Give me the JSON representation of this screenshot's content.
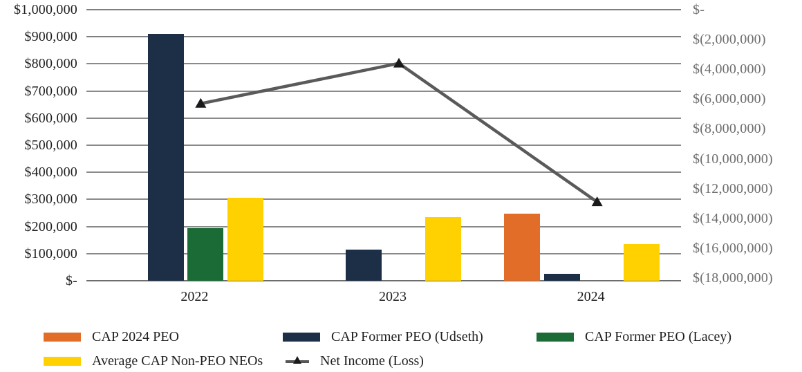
{
  "chart_data": {
    "type": "combo_bar_line",
    "title": "",
    "xlabel": "",
    "ylabel": "",
    "categories": [
      "2022",
      "2023",
      "2024"
    ],
    "bar_series": [
      {
        "name": "CAP 2024 PEO",
        "color": "#E26D28",
        "values": [
          null,
          null,
          248000
        ]
      },
      {
        "name": "CAP Former PEO (Udseth)",
        "color": "#1D2F47",
        "values": [
          910000,
          115000,
          25000
        ]
      },
      {
        "name": "CAP Former PEO (Lacey)",
        "color": "#1A6B35",
        "values": [
          195000,
          null,
          null
        ]
      },
      {
        "name": "Average CAP Non-PEO NEOs",
        "color": "#FFD100",
        "values": [
          305000,
          235000,
          135000
        ]
      }
    ],
    "line_series": {
      "name": "Net Income (Loss)",
      "color": "#5A5A5A",
      "marker_color": "#1A1A1A",
      "values": [
        -6300000,
        -3600000,
        -12900000
      ]
    },
    "left_axis": {
      "min": 0,
      "max": 1000000,
      "step": 100000,
      "labels": [
        "$1,000,000",
        "$900,000",
        "$800,000",
        "$700,000",
        "$600,000",
        "$500,000",
        "$400,000",
        "$300,000",
        "$200,000",
        "$100,000",
        "$-"
      ]
    },
    "right_axis": {
      "min": -18000000,
      "max": 0,
      "step": -2000000,
      "labels": [
        "$-",
        "$(2,000,000)",
        "$(4,000,000)",
        "$(6,000,000)",
        "$(8,000,000)",
        "$(10,000,000)",
        "$(12,000,000)",
        "$(14,000,000)",
        "$(16,000,000)",
        "$(18,000,000)"
      ]
    },
    "grid": true,
    "legend_position": "bottom",
    "legend": {
      "items": [
        {
          "label": "CAP 2024 PEO",
          "type": "bar",
          "color": "#E26D28"
        },
        {
          "label": "CAP Former PEO (Udseth)",
          "type": "bar",
          "color": "#1D2F47"
        },
        {
          "label": "CAP Former PEO (Lacey)",
          "type": "bar",
          "color": "#1A6B35"
        },
        {
          "label": "Average CAP Non-PEO NEOs",
          "type": "bar",
          "color": "#FFD100"
        },
        {
          "label": "Net Income (Loss)",
          "type": "line",
          "color": "#5A5A5A"
        }
      ]
    }
  }
}
